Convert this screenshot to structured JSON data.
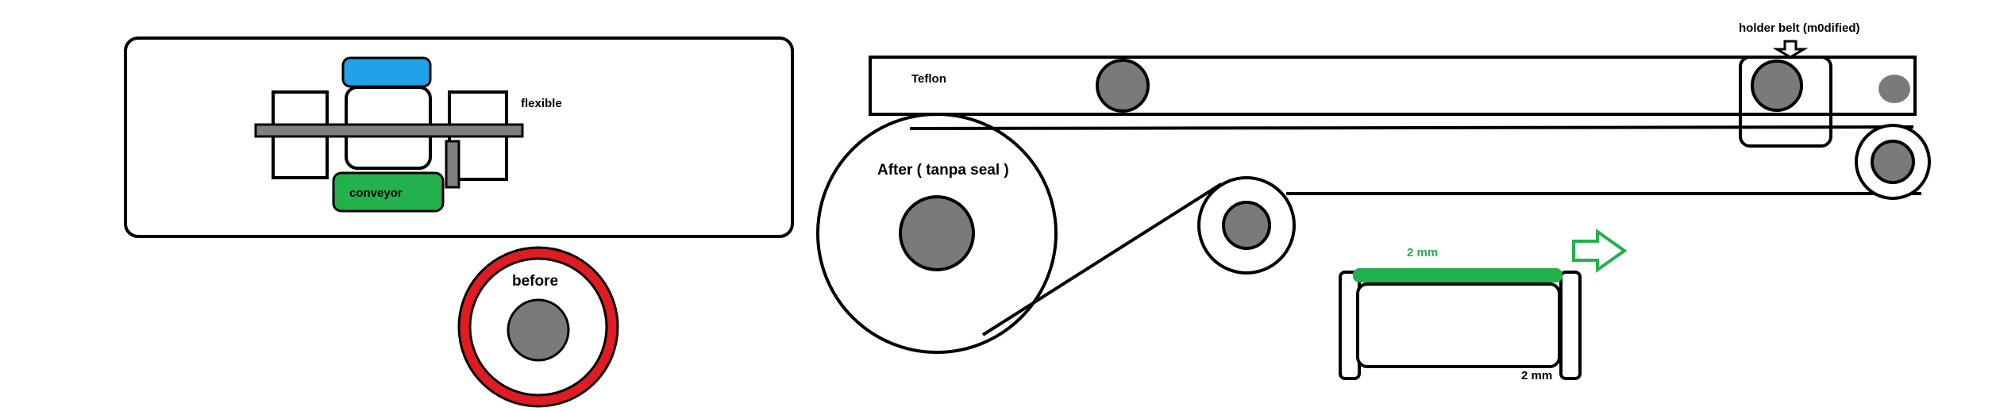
{
  "labels": {
    "flexible": "flexible",
    "conveyor": "conveyor",
    "before": "before",
    "teflon": "Teflon",
    "holder_belt": "holder belt (m0dified)",
    "after": "After ( tanpa seal )",
    "dim_top": "2 mm",
    "dim_bottom": "2 mm"
  },
  "colors": {
    "background": "#ffffff",
    "stroke": "#000000",
    "roller_gray": "#7a7a7a",
    "bar_gray": "#808080",
    "blue_cap": "#1fa2e8",
    "conveyor_green": "#22b14c",
    "red_ring": "#e11b22",
    "belt_green": "#22b14c",
    "arrow_green": "#22b14c"
  },
  "icons": {
    "direction_arrow": "right-arrow-icon",
    "pointer_arrow": "down-arrow-icon"
  }
}
